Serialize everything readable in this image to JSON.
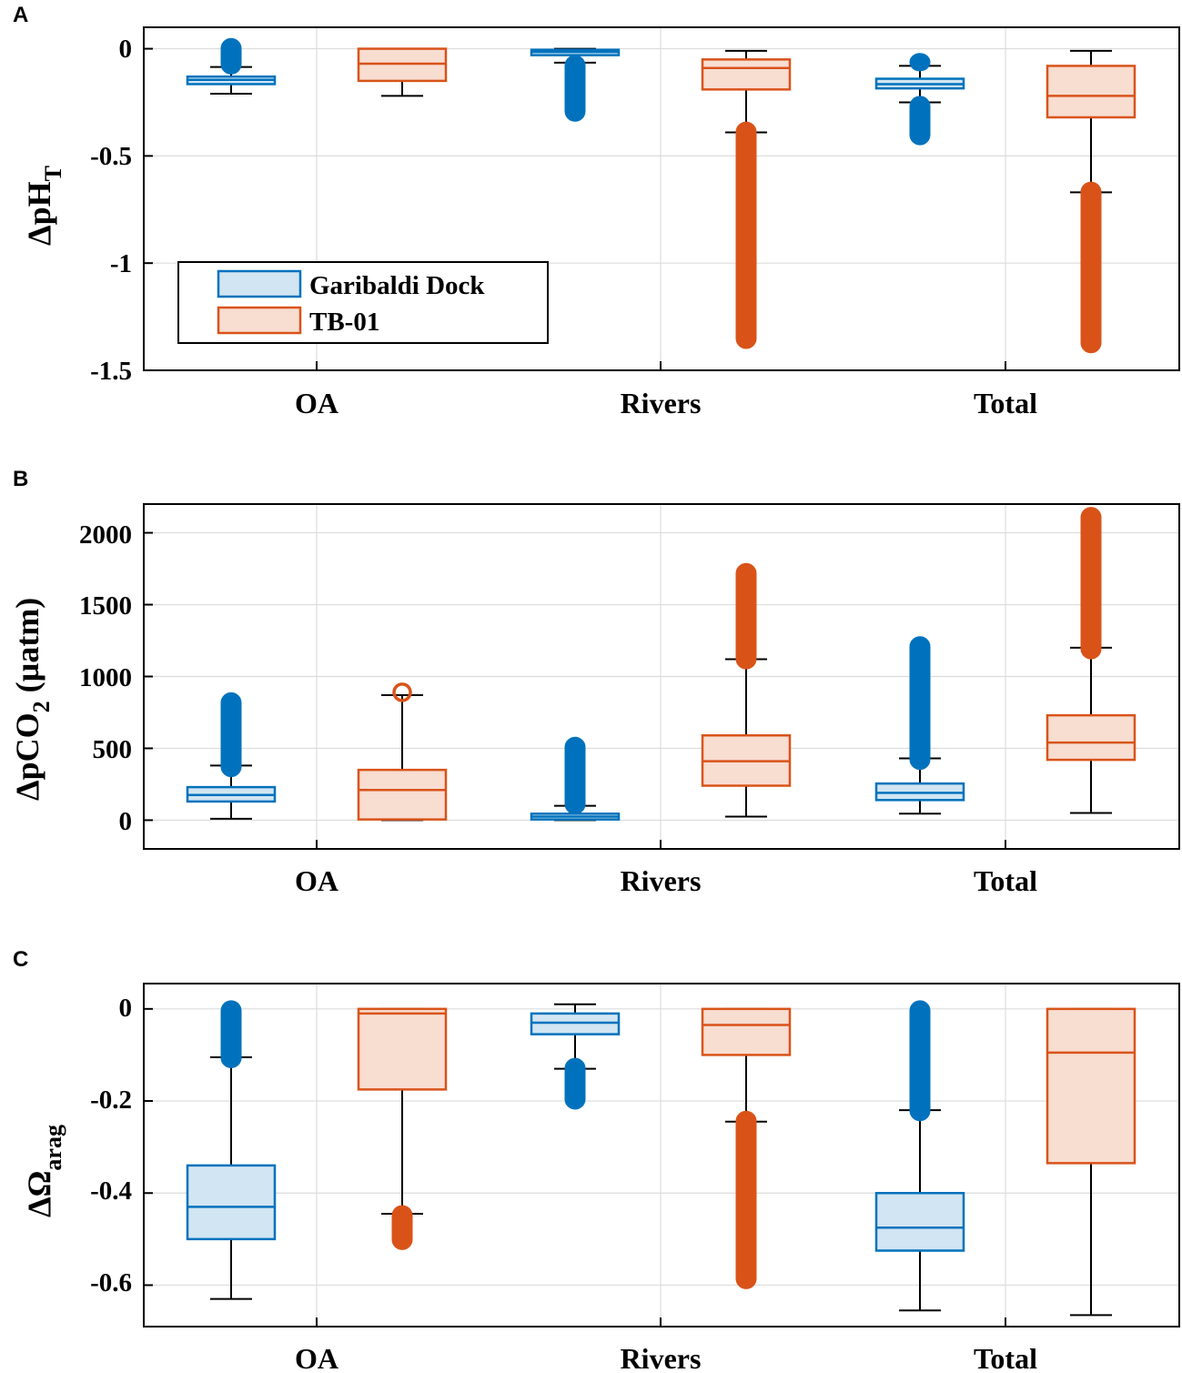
{
  "colors": {
    "garibaldi_edge": "#0072BD",
    "garibaldi_fill": "#d2e5f2",
    "tb01_edge": "#D95319",
    "tb01_fill": "#f8ddd1",
    "whisker": "#000000",
    "grid": "#dcdcdc"
  },
  "legend": {
    "items": [
      {
        "label": "Garibaldi Dock",
        "series": "garibaldi"
      },
      {
        "label": "TB-01",
        "series": "tb01"
      }
    ]
  },
  "chart_data": [
    {
      "panel_label": "A",
      "type": "box",
      "title": "",
      "xlabel": "",
      "ylabel": {
        "main": "ΔpH",
        "sub": "T"
      },
      "categories": [
        "OA",
        "Rivers",
        "Total"
      ],
      "ylim": [
        -1.5,
        0.1
      ],
      "yticks": [
        0,
        -0.5,
        -1,
        -1.5
      ],
      "ytick_labels": [
        "0",
        "-0.5",
        "-1",
        "-1.5"
      ],
      "grid": true,
      "legend_position": "bottom-left",
      "series": [
        {
          "name": "Garibaldi Dock",
          "key": "garibaldi",
          "boxes": [
            {
              "category": "OA",
              "whisker_low": -0.21,
              "q1": -0.165,
              "median": -0.145,
              "q3": -0.13,
              "whisker_high": -0.085,
              "outliers": [
                [
                  -0.08,
                  0.01
                ]
              ]
            },
            {
              "category": "Rivers",
              "whisker_low": -0.065,
              "q1": -0.03,
              "median": -0.015,
              "q3": -0.005,
              "whisker_high": 0.0,
              "outliers": [
                [
                  -0.3,
                  -0.07
                ]
              ]
            },
            {
              "category": "Total",
              "whisker_low": -0.25,
              "q1": -0.185,
              "median": -0.165,
              "q3": -0.14,
              "whisker_high": -0.08,
              "outliers": [
                [
                  -0.41,
                  -0.26
                ],
                [
                  -0.065,
                  -0.06
                ]
              ]
            }
          ]
        },
        {
          "name": "TB-01",
          "key": "tb01",
          "boxes": [
            {
              "category": "OA",
              "whisker_low": -0.22,
              "q1": -0.15,
              "median": -0.07,
              "q3": 0.0,
              "whisker_high": 0.0,
              "outliers": []
            },
            {
              "category": "Rivers",
              "whisker_low": -0.39,
              "q1": -0.19,
              "median": -0.09,
              "q3": -0.05,
              "whisker_high": -0.01,
              "outliers": [
                [
                  -1.36,
                  -0.38
                ]
              ]
            },
            {
              "category": "Total",
              "whisker_low": -0.67,
              "q1": -0.32,
              "median": -0.22,
              "q3": -0.08,
              "whisker_high": -0.01,
              "outliers": [
                [
                  -1.38,
                  -0.66
                ]
              ]
            }
          ]
        }
      ]
    },
    {
      "panel_label": "B",
      "type": "box",
      "title": "",
      "xlabel": "",
      "ylabel": {
        "main": "ΔpCO",
        "sub": "2",
        "tail": " (µatm)"
      },
      "categories": [
        "OA",
        "Rivers",
        "Total"
      ],
      "ylim": [
        -200,
        2200
      ],
      "yticks": [
        0,
        500,
        1000,
        1500,
        2000
      ],
      "ytick_labels": [
        "0",
        "500",
        "1000",
        "1500",
        "2000"
      ],
      "grid": true,
      "series": [
        {
          "name": "Garibaldi Dock",
          "key": "garibaldi",
          "boxes": [
            {
              "category": "OA",
              "whisker_low": 10,
              "q1": 130,
              "median": 175,
              "q3": 230,
              "whisker_high": 380,
              "outliers": [
                [
                  360,
                  830
                ]
              ]
            },
            {
              "category": "Rivers",
              "whisker_low": 0,
              "q1": 5,
              "median": 25,
              "q3": 45,
              "whisker_high": 100,
              "outliers": [
                [
                  100,
                  520
                ]
              ]
            },
            {
              "category": "Total",
              "whisker_low": 45,
              "q1": 140,
              "median": 190,
              "q3": 255,
              "whisker_high": 430,
              "outliers": [
                [
                  410,
                  1220
                ]
              ]
            }
          ]
        },
        {
          "name": "TB-01",
          "key": "tb01",
          "boxes": [
            {
              "category": "OA",
              "whisker_low": 0,
              "q1": 5,
              "median": 210,
              "q3": 350,
              "whisker_high": 870,
              "outliers": [
                [
                  890,
                  890
                ]
              ]
            },
            {
              "category": "Rivers",
              "whisker_low": 25,
              "q1": 240,
              "median": 410,
              "q3": 590,
              "whisker_high": 1120,
              "outliers": [
                [
                  1110,
                  1730
                ]
              ]
            },
            {
              "category": "Total",
              "whisker_low": 50,
              "q1": 420,
              "median": 540,
              "q3": 730,
              "whisker_high": 1200,
              "outliers": [
                [
                  1180,
                  2120
                ]
              ]
            }
          ]
        }
      ]
    },
    {
      "panel_label": "C",
      "type": "box",
      "title": "",
      "xlabel": "",
      "ylabel": {
        "main": "ΔΩ",
        "sub": "arag"
      },
      "categories": [
        "OA",
        "Rivers",
        "Total"
      ],
      "ylim": [
        -0.69,
        0.055
      ],
      "yticks": [
        0,
        -0.2,
        -0.4,
        -0.6
      ],
      "ytick_labels": [
        "0",
        "-0.2",
        "-0.4",
        "-0.6"
      ],
      "grid": true,
      "series": [
        {
          "name": "Garibaldi Dock",
          "key": "garibaldi",
          "boxes": [
            {
              "category": "OA",
              "whisker_low": -0.63,
              "q1": -0.5,
              "median": -0.43,
              "q3": -0.34,
              "whisker_high": -0.105,
              "outliers": [
                [
                  -0.11,
                  0.0
                ]
              ]
            },
            {
              "category": "Rivers",
              "whisker_low": -0.13,
              "q1": -0.055,
              "median": -0.03,
              "q3": -0.01,
              "whisker_high": 0.01,
              "outliers": [
                [
                  -0.2,
                  -0.125
                ]
              ]
            },
            {
              "category": "Total",
              "whisker_low": -0.655,
              "q1": -0.525,
              "median": -0.475,
              "q3": -0.4,
              "whisker_high": -0.22,
              "outliers": [
                [
                  -0.225,
                  0.0
                ]
              ]
            }
          ]
        },
        {
          "name": "TB-01",
          "key": "tb01",
          "boxes": [
            {
              "category": "OA",
              "whisker_low": -0.445,
              "q1": -0.175,
              "median": -0.01,
              "q3": 0.0,
              "whisker_high": 0.0,
              "outliers": [
                [
                  -0.505,
                  -0.445
                ]
              ]
            },
            {
              "category": "Rivers",
              "whisker_low": -0.245,
              "q1": -0.1,
              "median": -0.035,
              "q3": 0.0,
              "whisker_high": 0.0,
              "outliers": [
                [
                  -0.59,
                  -0.24
                ]
              ]
            },
            {
              "category": "Total",
              "whisker_low": -0.665,
              "q1": -0.335,
              "median": -0.095,
              "q3": 0.0,
              "whisker_high": 0.0,
              "outliers": []
            }
          ]
        }
      ]
    }
  ]
}
